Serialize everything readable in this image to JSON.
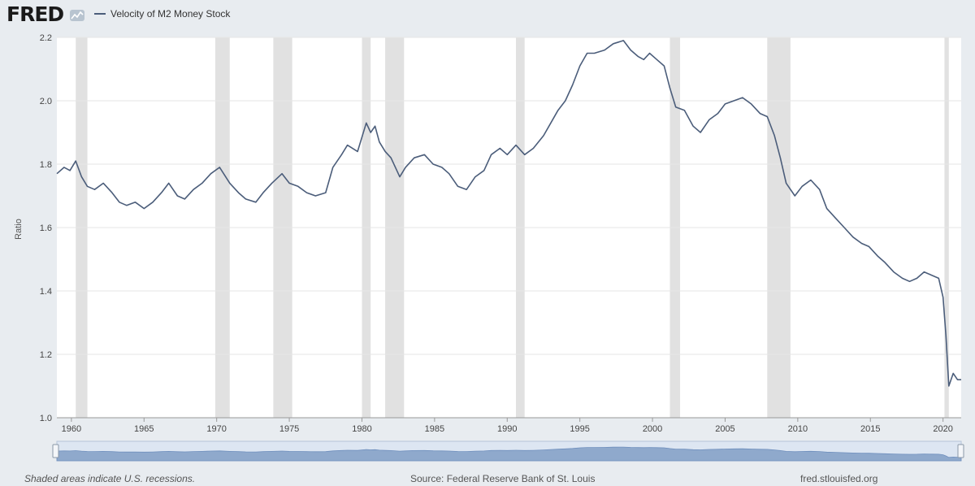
{
  "header": {
    "logo": "FRED",
    "legend_label": "Velocity of M2 Money Stock",
    "series_color": "#4b5d7a"
  },
  "footer": {
    "note": "Shaded areas indicate U.S. recessions.",
    "source": "Source: Federal Reserve Bank of St. Louis",
    "site": "fred.stlouisfed.org"
  },
  "chart_data": {
    "type": "line",
    "title": "",
    "xlabel": "",
    "ylabel": "Ratio",
    "ylim": [
      1.0,
      2.2
    ],
    "xlim": [
      1959.0,
      2021.25
    ],
    "grid": true,
    "legend": "top-left",
    "yticks": [
      "1.0",
      "1.2",
      "1.4",
      "1.6",
      "1.8",
      "2.0",
      "2.2"
    ],
    "xticks": [
      "1960",
      "1965",
      "1970",
      "1975",
      "1980",
      "1985",
      "1990",
      "1995",
      "2000",
      "2005",
      "2010",
      "2015",
      "2020"
    ],
    "recessions": [
      [
        1960.3,
        1961.1
      ],
      [
        1969.9,
        1970.9
      ],
      [
        1973.9,
        1975.2
      ],
      [
        1980.0,
        1980.6
      ],
      [
        1981.6,
        1982.9
      ],
      [
        1990.6,
        1991.2
      ],
      [
        2001.2,
        2001.9
      ],
      [
        2007.9,
        2009.5
      ],
      [
        2020.1,
        2020.4
      ]
    ],
    "series": [
      {
        "name": "Velocity of M2 Money Stock",
        "x": [
          1959.0,
          1959.5,
          1959.9,
          1960.3,
          1960.7,
          1961.1,
          1961.6,
          1962.2,
          1962.8,
          1963.3,
          1963.8,
          1964.4,
          1965.0,
          1965.6,
          1966.2,
          1966.7,
          1967.3,
          1967.8,
          1968.4,
          1969.0,
          1969.6,
          1970.2,
          1970.9,
          1971.5,
          1972.0,
          1972.7,
          1973.2,
          1973.8,
          1974.5,
          1975.0,
          1975.6,
          1976.2,
          1976.8,
          1977.5,
          1978.0,
          1978.6,
          1979.0,
          1979.7,
          1980.3,
          1980.6,
          1980.9,
          1981.2,
          1981.6,
          1982.0,
          1982.6,
          1983.0,
          1983.6,
          1984.3,
          1984.9,
          1985.5,
          1986.0,
          1986.6,
          1987.2,
          1987.8,
          1988.4,
          1988.9,
          1989.5,
          1990.0,
          1990.6,
          1991.2,
          1991.8,
          1992.5,
          1993.0,
          1993.5,
          1994.0,
          1994.5,
          1995.0,
          1995.5,
          1996.0,
          1996.7,
          1997.3,
          1998.0,
          1998.5,
          1999.0,
          1999.4,
          1999.8,
          2000.3,
          2000.8,
          2001.2,
          2001.6,
          2002.2,
          2002.8,
          2003.3,
          2003.9,
          2004.5,
          2005.0,
          2005.6,
          2006.2,
          2006.8,
          2007.4,
          2007.9,
          2008.4,
          2008.8,
          2009.2,
          2009.8,
          2010.3,
          2010.9,
          2011.5,
          2012.0,
          2012.6,
          2013.2,
          2013.8,
          2014.4,
          2014.9,
          2015.5,
          2016.0,
          2016.6,
          2017.2,
          2017.7,
          2018.2,
          2018.7,
          2019.2,
          2019.7,
          2020.0,
          2020.2,
          2020.4,
          2020.7,
          2021.0,
          2021.25
        ],
        "y": [
          1.77,
          1.79,
          1.78,
          1.81,
          1.76,
          1.73,
          1.72,
          1.74,
          1.71,
          1.68,
          1.67,
          1.68,
          1.66,
          1.68,
          1.71,
          1.74,
          1.7,
          1.69,
          1.72,
          1.74,
          1.77,
          1.79,
          1.74,
          1.71,
          1.69,
          1.68,
          1.71,
          1.74,
          1.77,
          1.74,
          1.73,
          1.71,
          1.7,
          1.71,
          1.79,
          1.83,
          1.86,
          1.84,
          1.93,
          1.9,
          1.92,
          1.87,
          1.84,
          1.82,
          1.76,
          1.79,
          1.82,
          1.83,
          1.8,
          1.79,
          1.77,
          1.73,
          1.72,
          1.76,
          1.78,
          1.83,
          1.85,
          1.83,
          1.86,
          1.83,
          1.85,
          1.89,
          1.93,
          1.97,
          2.0,
          2.05,
          2.11,
          2.15,
          2.15,
          2.16,
          2.18,
          2.19,
          2.16,
          2.14,
          2.13,
          2.15,
          2.13,
          2.11,
          2.04,
          1.98,
          1.97,
          1.92,
          1.9,
          1.94,
          1.96,
          1.99,
          2.0,
          2.01,
          1.99,
          1.96,
          1.95,
          1.89,
          1.82,
          1.74,
          1.7,
          1.73,
          1.75,
          1.72,
          1.66,
          1.63,
          1.6,
          1.57,
          1.55,
          1.54,
          1.51,
          1.49,
          1.46,
          1.44,
          1.43,
          1.44,
          1.46,
          1.45,
          1.44,
          1.38,
          1.26,
          1.1,
          1.14,
          1.12,
          1.12
        ]
      }
    ]
  }
}
